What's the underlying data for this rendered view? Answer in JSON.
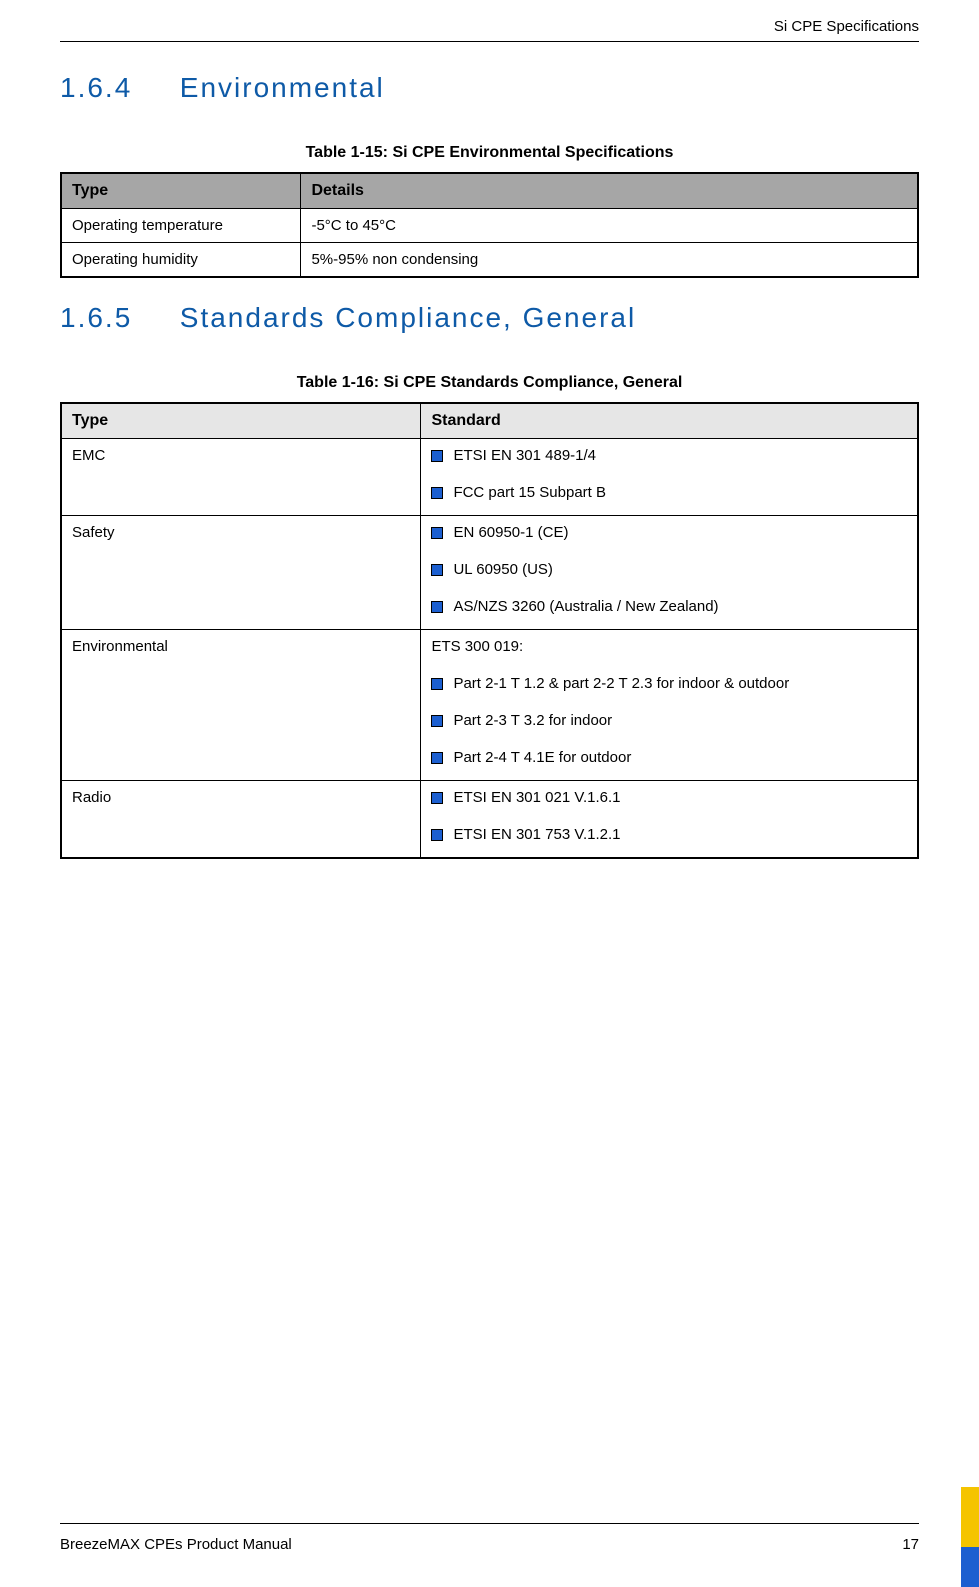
{
  "page": {
    "running_header": "Si CPE Specifications",
    "footer_left": "BreezeMAX CPEs Product Manual",
    "footer_page": "17"
  },
  "sections": {
    "s164": {
      "number": "1.6.4",
      "title": "Environmental"
    },
    "s165": {
      "number": "1.6.5",
      "title": "Standards Compliance, General"
    }
  },
  "colors": {
    "heading": "#0e5aa7",
    "bullet_fill": "#1c5fd0",
    "bullet_border": "#000000",
    "t15_header_bg": "#a6a6a6",
    "t16_header_bg": "#e6e6e6",
    "footer_blue": "#1c5fd0",
    "footer_yellow": "#f5c400"
  },
  "table15": {
    "caption": "Table 1-15: Si CPE Environmental Specifications",
    "headers": {
      "type": "Type",
      "details": "Details"
    },
    "rows": [
      {
        "type": "Operating temperature",
        "details": "-5°C to 45°C"
      },
      {
        "type": "Operating humidity",
        "details": "5%-95% non condensing"
      }
    ]
  },
  "table16": {
    "caption": "Table 1-16: Si CPE Standards Compliance, General",
    "headers": {
      "type": "Type",
      "standard": "Standard"
    },
    "rows": [
      {
        "type": "EMC",
        "lead": null,
        "items": [
          "ETSI EN 301 489-1/4",
          "FCC part 15 Subpart B"
        ]
      },
      {
        "type": "Safety",
        "lead": null,
        "items": [
          "EN 60950-1 (CE)",
          "UL 60950 (US)",
          "AS/NZS 3260 (Australia / New Zealand)"
        ]
      },
      {
        "type": "Environmental",
        "lead": "ETS 300 019:",
        "items": [
          "Part 2-1 T 1.2 & part 2-2 T 2.3 for indoor & outdoor",
          "Part 2-3 T 3.2 for indoor",
          "Part 2-4 T 4.1E for outdoor"
        ]
      },
      {
        "type": "Radio",
        "lead": null,
        "items": [
          "ETSI EN 301 021 V.1.6.1",
          "ETSI EN 301 753 V.1.2.1"
        ]
      }
    ]
  }
}
